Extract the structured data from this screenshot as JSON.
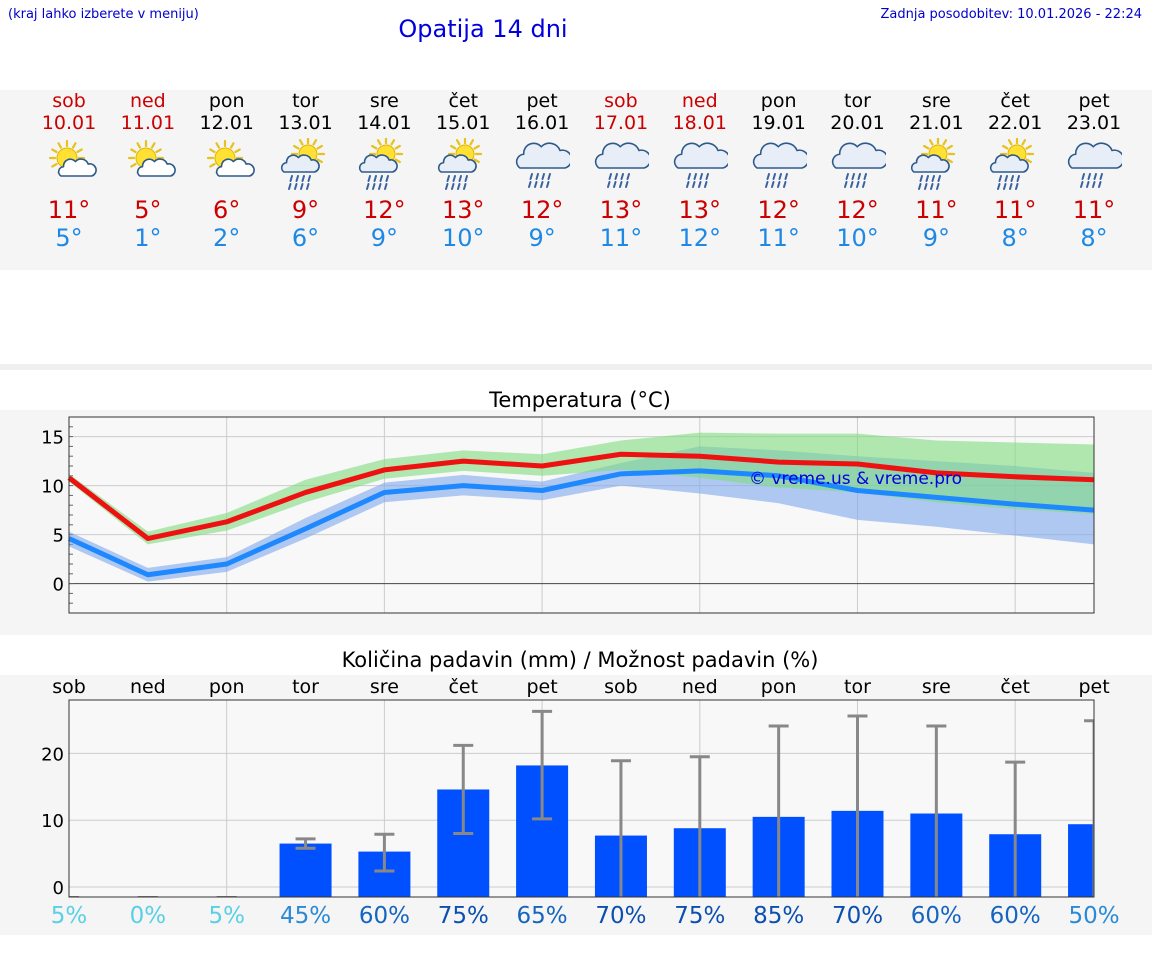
{
  "header": {
    "hint": "(kraj lahko izberete v meniju)",
    "title": "Opatija 14 dni",
    "updated": "Zadnja posodobitev: 10.01.2026 - 22:24"
  },
  "colors": {
    "max_line": "#ee1111",
    "min_line": "#1e88ff",
    "max_band": "#7fdc7f",
    "min_band": "#7fa8ee",
    "bar": "#0050ff",
    "errbar": "#888888",
    "weekend": "#cc0000"
  },
  "days": [
    {
      "name": "sob",
      "date": "10.01",
      "weekend": true,
      "icon": "sun-cloud-icon",
      "max": "11°",
      "min": "5°"
    },
    {
      "name": "ned",
      "date": "11.01",
      "weekend": true,
      "icon": "sun-cloud-icon",
      "max": "5°",
      "min": "1°"
    },
    {
      "name": "pon",
      "date": "12.01",
      "weekend": false,
      "icon": "sun-cloud-icon",
      "max": "6°",
      "min": "2°"
    },
    {
      "name": "tor",
      "date": "13.01",
      "weekend": false,
      "icon": "sun-cloud-rain-icon",
      "max": "9°",
      "min": "6°"
    },
    {
      "name": "sre",
      "date": "14.01",
      "weekend": false,
      "icon": "sun-cloud-rain-icon",
      "max": "12°",
      "min": "9°"
    },
    {
      "name": "čet",
      "date": "15.01",
      "weekend": false,
      "icon": "sun-cloud-rain-icon",
      "max": "13°",
      "min": "10°"
    },
    {
      "name": "pet",
      "date": "16.01",
      "weekend": false,
      "icon": "cloud-rain-icon",
      "max": "12°",
      "min": "9°"
    },
    {
      "name": "sob",
      "date": "17.01",
      "weekend": true,
      "icon": "cloud-rain-icon",
      "max": "13°",
      "min": "11°"
    },
    {
      "name": "ned",
      "date": "18.01",
      "weekend": true,
      "icon": "cloud-rain-icon",
      "max": "13°",
      "min": "12°"
    },
    {
      "name": "pon",
      "date": "19.01",
      "weekend": false,
      "icon": "cloud-rain-icon",
      "max": "12°",
      "min": "11°"
    },
    {
      "name": "tor",
      "date": "20.01",
      "weekend": false,
      "icon": "cloud-rain-icon",
      "max": "12°",
      "min": "10°"
    },
    {
      "name": "sre",
      "date": "21.01",
      "weekend": false,
      "icon": "sun-cloud-rain-icon",
      "max": "11°",
      "min": "9°"
    },
    {
      "name": "čet",
      "date": "22.01",
      "weekend": false,
      "icon": "sun-cloud-rain-icon",
      "max": "11°",
      "min": "8°"
    },
    {
      "name": "pet",
      "date": "23.01",
      "weekend": false,
      "icon": "cloud-rain-icon",
      "max": "11°",
      "min": "8°"
    }
  ],
  "chart_data": [
    {
      "type": "line",
      "title": "Temperatura (°C)",
      "watermark": "© vreme.us & vreme.pro",
      "x": [
        0,
        1,
        2,
        3,
        4,
        5,
        6,
        7,
        8,
        9,
        10,
        11,
        12,
        13
      ],
      "ylim": [
        -3,
        17
      ],
      "yticks": [
        0,
        5,
        10,
        15
      ],
      "series": [
        {
          "name": "max",
          "values": [
            10.8,
            4.6,
            6.3,
            9.3,
            11.6,
            12.5,
            12.0,
            13.2,
            13.0,
            12.4,
            12.2,
            11.3,
            10.9,
            10.6
          ],
          "band_low": [
            10.4,
            4.0,
            5.4,
            8.3,
            10.7,
            11.5,
            11.0,
            11.6,
            10.8,
            9.8,
            9.3,
            8.3,
            7.6,
            7.1
          ],
          "band_high": [
            11.2,
            5.3,
            7.2,
            10.6,
            12.7,
            13.6,
            13.2,
            14.6,
            15.4,
            15.3,
            15.3,
            14.6,
            14.4,
            14.2
          ]
        },
        {
          "name": "min",
          "values": [
            4.6,
            0.9,
            2.0,
            5.6,
            9.3,
            10.0,
            9.5,
            11.2,
            11.5,
            11.0,
            9.5,
            8.8,
            8.1,
            7.5
          ],
          "band_low": [
            3.8,
            0.2,
            1.2,
            4.6,
            8.3,
            9.0,
            8.5,
            10.0,
            9.2,
            8.2,
            6.5,
            5.8,
            4.9,
            4.0
          ],
          "band_high": [
            5.3,
            1.6,
            2.7,
            6.7,
            10.3,
            11.1,
            10.4,
            12.3,
            14.0,
            13.6,
            13.0,
            12.5,
            12.0,
            11.3
          ]
        }
      ]
    },
    {
      "type": "bar",
      "title": "Količina padavin (mm) / Možnost padavin (%)",
      "categories": [
        "sob",
        "ned",
        "pon",
        "tor",
        "sre",
        "čet",
        "pet",
        "sob",
        "ned",
        "pon",
        "tor",
        "sre",
        "čet",
        "pet"
      ],
      "ylim": [
        -1.5,
        28
      ],
      "yticks": [
        0,
        10,
        20
      ],
      "values": [
        0,
        0,
        0,
        6.5,
        5.3,
        14.6,
        18.2,
        7.7,
        8.8,
        10.5,
        11.4,
        11.0,
        7.9,
        9.4
      ],
      "err_low": [
        0,
        0,
        0,
        5.8,
        2.4,
        8.0,
        10.2,
        0,
        0,
        0,
        0,
        0,
        0,
        0
      ],
      "err_high": [
        0,
        0,
        0,
        7.2,
        7.9,
        21.2,
        26.3,
        18.9,
        19.5,
        24.1,
        25.6,
        24.1,
        18.7,
        24.9
      ],
      "chance": [
        "5%",
        "0%",
        "5%",
        "45%",
        "60%",
        "75%",
        "65%",
        "70%",
        "75%",
        "85%",
        "70%",
        "60%",
        "60%",
        "50%"
      ],
      "chance_values": [
        5,
        0,
        5,
        45,
        60,
        75,
        65,
        70,
        75,
        85,
        70,
        60,
        60,
        50
      ]
    }
  ]
}
